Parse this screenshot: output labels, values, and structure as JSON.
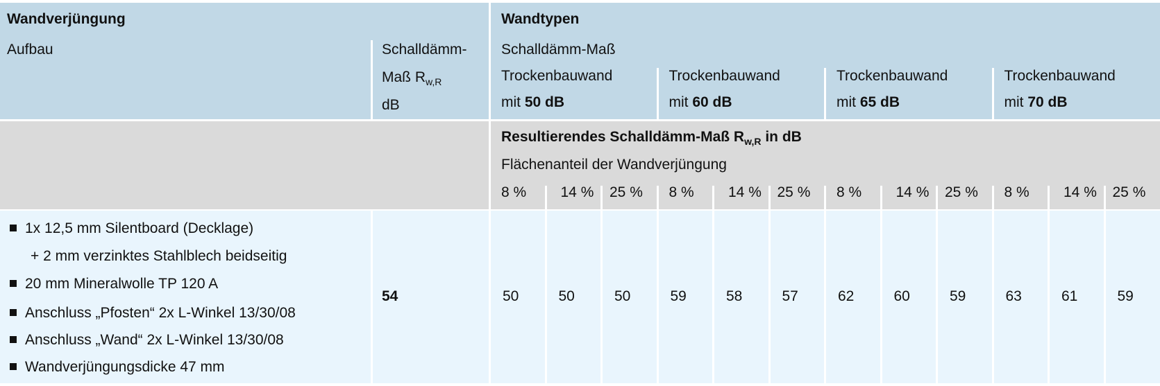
{
  "left_header": {
    "title": "Wandverjüngung",
    "col_aufbau": "Aufbau",
    "col_rw_line1": "Schalldämm-",
    "col_rw_line2": "Maß R",
    "col_rw_sub": "w,R",
    "col_rw_line3": "dB"
  },
  "right_header": {
    "title": "Wandtypen",
    "subtitle": "Schalldämm-Maß",
    "wall_types": [
      {
        "line1": "Trockenbauwand",
        "prefix": "mit ",
        "value": "50 dB"
      },
      {
        "line1": "Trockenbauwand",
        "prefix": "mit ",
        "value": "60 dB"
      },
      {
        "line1": "Trockenbauwand",
        "prefix": "mit ",
        "value": "65 dB"
      },
      {
        "line1": "Trockenbauwand",
        "prefix": "mit ",
        "value": "70 dB"
      }
    ]
  },
  "result_header": {
    "title": "Resultierendes Schalldämm-Maß R",
    "title_sub": "w,R",
    "title_suffix": " in dB",
    "subtitle": "Flächenanteil der Wandverjüngung",
    "percents": [
      "8 %",
      "14 %",
      "25 %",
      "8 %",
      "14 %",
      "25 %",
      "8 %",
      "14 %",
      "25 %",
      "8 %",
      "14 %",
      "25 %"
    ]
  },
  "row": {
    "aufbau": [
      {
        "bullet": true,
        "text": "1x 12,5 mm Silentboard (Decklage)"
      },
      {
        "bullet": false,
        "text": "+ 2 mm verzinktes Stahlblech beidseitig"
      },
      {
        "bullet": true,
        "text": "20 mm Mineralwolle TP 120 A"
      },
      {
        "bullet": true,
        "text": "Anschluss „Pfosten“ 2x L-Winkel 13/30/08"
      },
      {
        "bullet": true,
        "text": "Anschluss „Wand“ 2x L-Winkel 13/30/08"
      },
      {
        "bullet": true,
        "text": "Wandverjüngungsdicke 47 mm"
      }
    ],
    "rw": "54",
    "values": [
      "50",
      "50",
      "50",
      "59",
      "58",
      "57",
      "62",
      "60",
      "59",
      "63",
      "61",
      "59"
    ]
  },
  "colors": {
    "header_blue": "#c1d8e6",
    "result_grey": "#dadada",
    "body_blue": "#e9f5fd"
  }
}
